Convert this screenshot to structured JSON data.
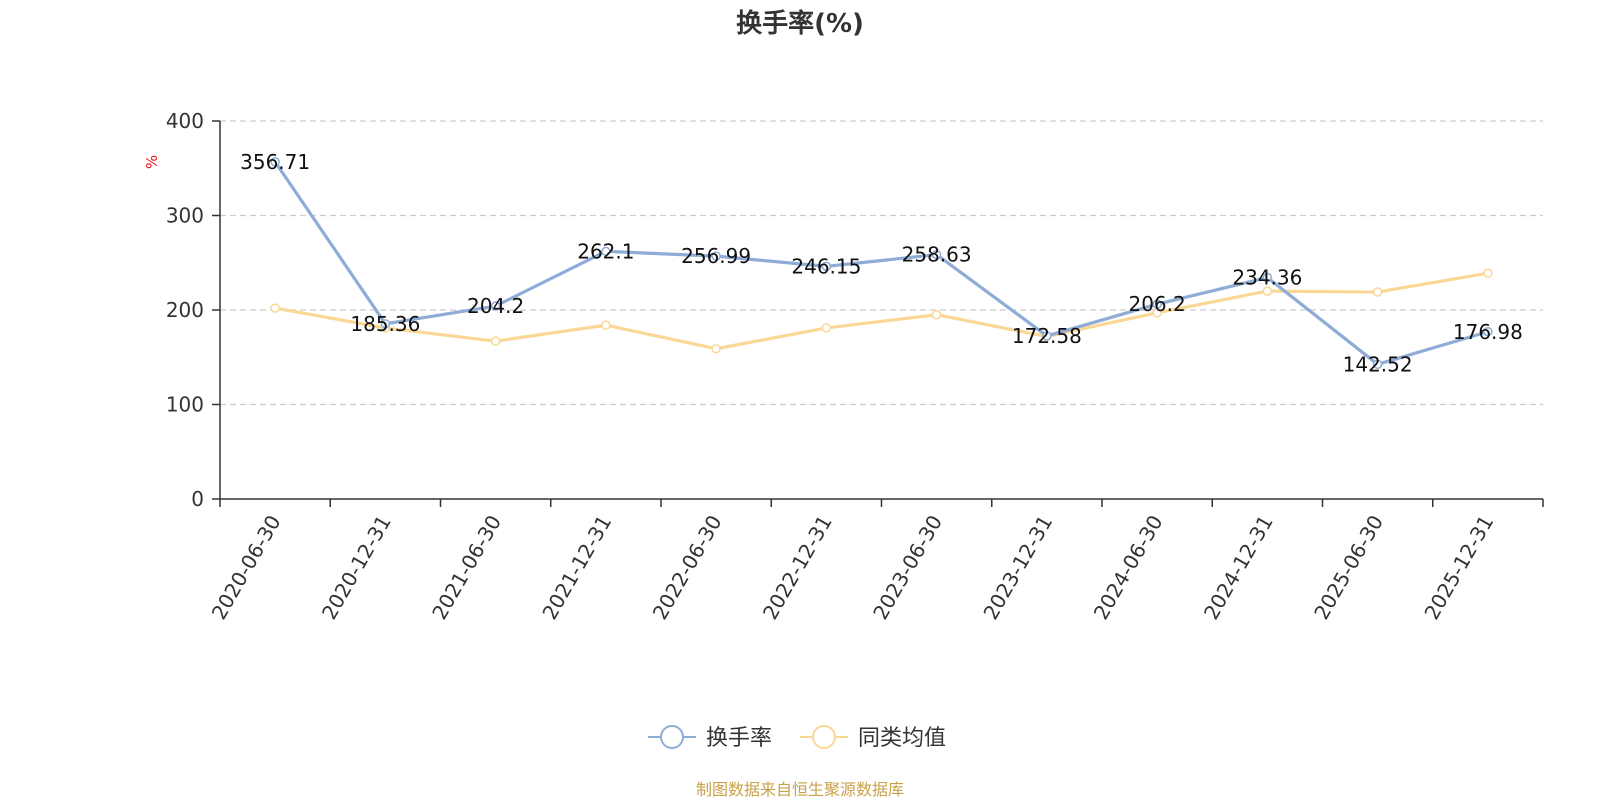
{
  "chart_data": {
    "type": "line",
    "title": "换手率(%)",
    "unit_label": "%",
    "categories": [
      "2020-06-30",
      "2020-12-31",
      "2021-06-30",
      "2021-12-31",
      "2022-06-30",
      "2022-12-31",
      "2023-06-30",
      "2023-12-31",
      "2024-06-30",
      "2024-12-31",
      "2025-06-30",
      "2025-12-31"
    ],
    "ylim": [
      0,
      400
    ],
    "yticks": [
      0,
      100,
      200,
      300,
      400
    ],
    "grid": true,
    "legend_position": "bottom-center",
    "series": [
      {
        "name": "换手率",
        "color": "#8eacd6",
        "values": [
          356.71,
          185.36,
          204.2,
          262.1,
          256.99,
          246.15,
          258.63,
          172.58,
          206.2,
          234.36,
          142.52,
          176.98
        ],
        "show_labels": true,
        "labels": [
          "356.71",
          "185.36",
          "204.2",
          "262.1",
          "256.99",
          "246.15",
          "258.63",
          "172.58",
          "206.2",
          "234.36",
          "142.52",
          "176.98"
        ]
      },
      {
        "name": "同类均值",
        "color": "#fbd796",
        "values": [
          202,
          181,
          167,
          184,
          159,
          181,
          195,
          172,
          197,
          220,
          219,
          239
        ],
        "show_labels": false
      }
    ]
  },
  "colors": {
    "axis": "#333333",
    "grid": "#cccccc",
    "unit": "#e8141b",
    "footer": "#c9a14a"
  },
  "footer": "制图数据来自恒生聚源数据库"
}
